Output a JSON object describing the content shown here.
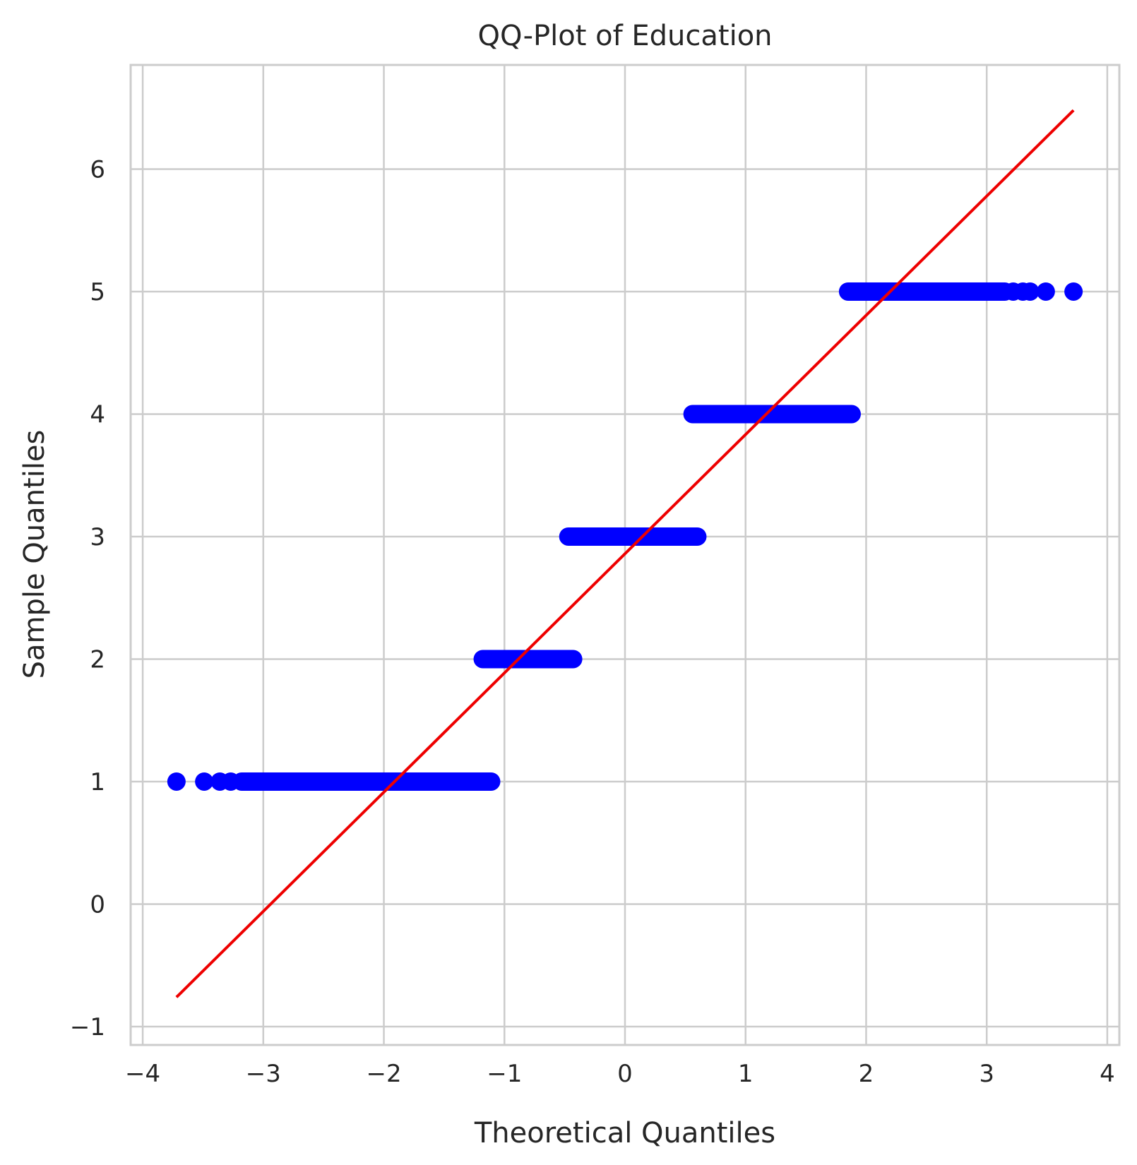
{
  "chart_data": {
    "type": "scatter",
    "title": "QQ-Plot of Education",
    "xlabel": "Theoretical Quantiles",
    "ylabel": "Sample Quantiles",
    "xlim": [
      -4.1,
      4.1
    ],
    "ylim": [
      -1.15,
      6.85
    ],
    "xticks": [
      -4,
      -3,
      -2,
      -1,
      0,
      1,
      2,
      3,
      4
    ],
    "xtick_labels": [
      "−4",
      "−3",
      "−2",
      "−1",
      "0",
      "1",
      "2",
      "3",
      "4"
    ],
    "yticks": [
      -1,
      0,
      1,
      2,
      3,
      4,
      5,
      6
    ],
    "ytick_labels": [
      "−1",
      "0",
      "1",
      "2",
      "3",
      "4",
      "5",
      "6"
    ],
    "grid": true,
    "colors": {
      "points": "#0000ff",
      "line": "#ee0000",
      "grid": "#cccccc",
      "text": "#262626"
    },
    "series": [
      {
        "marker": "circle",
        "segments": [
          {
            "y": 1,
            "x_start": -3.18,
            "x_end": -1.11
          },
          {
            "y": 2,
            "x_start": -1.18,
            "x_end": -0.43
          },
          {
            "y": 3,
            "x_start": -0.47,
            "x_end": 0.6
          },
          {
            "y": 4,
            "x_start": 0.56,
            "x_end": 1.88
          },
          {
            "y": 5,
            "x_start": 1.85,
            "x_end": 3.15
          }
        ],
        "points": [
          {
            "x": -3.72,
            "y": 1
          },
          {
            "x": -3.49,
            "y": 1
          },
          {
            "x": -3.36,
            "y": 1
          },
          {
            "x": -3.27,
            "y": 1
          },
          {
            "x": 3.22,
            "y": 5
          },
          {
            "x": 3.3,
            "y": 5
          },
          {
            "x": 3.36,
            "y": 5
          },
          {
            "x": 3.49,
            "y": 5
          },
          {
            "x": 3.72,
            "y": 5
          }
        ]
      },
      {
        "type": "line",
        "points": [
          {
            "x": -3.72,
            "y": -0.76
          },
          {
            "x": 3.72,
            "y": 6.48
          }
        ]
      }
    ]
  }
}
